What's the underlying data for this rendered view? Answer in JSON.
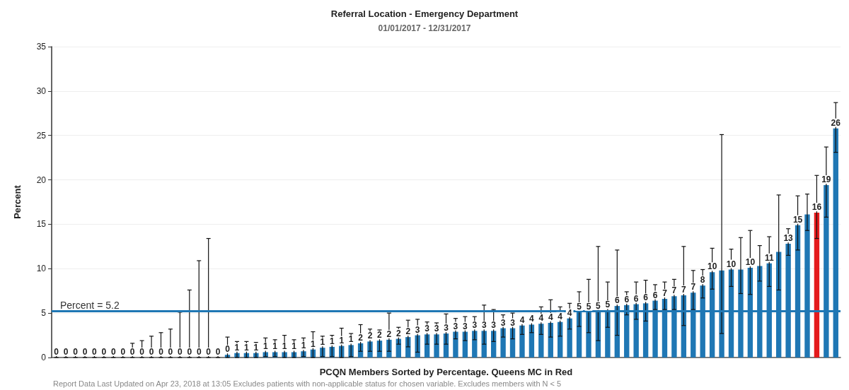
{
  "chart_data": {
    "type": "bar",
    "title": "Referral Location - Emergency Department",
    "subtitle": "01/01/2017 - 12/31/2017",
    "xlabel": "PCQN Members Sorted by Percentage. Queens MC in Red",
    "ylabel": "Percent",
    "annotations": [
      "Report Data Last Updated on Apr 23, 2018 at 13:05 Excludes patients with non-applicable status for chosen variable. Excludes members with N < 5"
    ],
    "categories": [
      null,
      null,
      null,
      null,
      null,
      null,
      null,
      null,
      null,
      null,
      null,
      null,
      null,
      null,
      null,
      null,
      null,
      null,
      null,
      null,
      null,
      null,
      null,
      null,
      null,
      null,
      null,
      null,
      null,
      null,
      null,
      null,
      null,
      null,
      null,
      null,
      null,
      null,
      null,
      null,
      null,
      null,
      null,
      null,
      null,
      null,
      null,
      null,
      null,
      null,
      null,
      null,
      null,
      null,
      null,
      null,
      null,
      null,
      null,
      null,
      null,
      null,
      null,
      null,
      null,
      null,
      null,
      null,
      null,
      null,
      null,
      null,
      null,
      null,
      null,
      null,
      null,
      null,
      null,
      null,
      null,
      null,
      null
    ],
    "values": [
      0,
      0,
      0,
      0,
      0,
      0,
      0,
      0,
      0,
      0,
      0,
      0,
      0,
      0,
      0,
      0,
      0,
      0,
      0.3,
      0.5,
      0.5,
      0.5,
      0.6,
      0.6,
      0.6,
      0.6,
      0.7,
      0.9,
      1.1,
      1.2,
      1.3,
      1.4,
      1.6,
      1.8,
      1.9,
      2.0,
      2.1,
      2.3,
      2.5,
      2.6,
      2.6,
      2.7,
      2.9,
      2.9,
      3.0,
      3.0,
      3.0,
      3.3,
      3.3,
      3.6,
      3.7,
      3.8,
      3.9,
      4.0,
      4.4,
      5.1,
      5.1,
      5.2,
      5.3,
      5.8,
      5.9,
      6.0,
      6.1,
      6.4,
      6.6,
      6.9,
      7.0,
      7.3,
      8.1,
      9.6,
      9.8,
      9.9,
      9.9,
      10.1,
      10.3,
      10.6,
      11.9,
      12.8,
      14.9,
      16.1,
      16.3,
      19.4,
      25.8
    ],
    "value_labels": [
      "0",
      "0",
      "0",
      "0",
      "0",
      "0",
      "0",
      "0",
      "0",
      "0",
      "0",
      "0",
      "0",
      "0",
      "0",
      "0",
      "0",
      "0",
      "0",
      "1",
      "1",
      "1",
      "1",
      "1",
      "1",
      "1",
      "1",
      "1",
      "1",
      "1",
      "1",
      "1",
      "2",
      "2",
      "2",
      "2",
      "2",
      "2",
      "3",
      "3",
      "3",
      "3",
      "3",
      "3",
      "3",
      "3",
      "3",
      "3",
      "3",
      "4",
      "4",
      "4",
      "4",
      "4",
      "4",
      "5",
      "5",
      "5",
      "5",
      "6",
      "6",
      "6",
      "6",
      "6",
      "7",
      "7",
      "7",
      "7",
      "8",
      "10",
      null,
      "10",
      null,
      "10",
      null,
      "11",
      null,
      "13",
      "15",
      null,
      "16",
      "19",
      "26"
    ],
    "errors": [
      [
        0,
        0.9
      ],
      [
        0,
        0.9
      ],
      [
        0,
        0.9
      ],
      [
        0,
        0.9
      ],
      [
        0,
        0.9
      ],
      [
        0,
        0.9
      ],
      [
        0,
        0.9
      ],
      [
        0,
        0.9
      ],
      [
        0,
        1.6
      ],
      [
        0,
        1.9
      ],
      [
        0,
        2.4
      ],
      [
        0,
        2.8
      ],
      [
        0,
        3.2
      ],
      [
        0,
        5.1
      ],
      [
        0,
        7.6
      ],
      [
        0,
        10.9
      ],
      [
        0,
        13.4
      ],
      [
        0,
        0.5
      ],
      [
        0,
        2.3
      ],
      [
        0,
        1.8
      ],
      [
        0,
        1.8
      ],
      [
        0,
        1.7
      ],
      [
        0.1,
        2.2
      ],
      [
        0.1,
        2.0
      ],
      [
        0,
        2.5
      ],
      [
        0,
        2.0
      ],
      [
        0.1,
        2.2
      ],
      [
        0,
        2.9
      ],
      [
        0.1,
        2.4
      ],
      [
        0.1,
        2.5
      ],
      [
        0,
        3.3
      ],
      [
        0.1,
        2.7
      ],
      [
        0.7,
        3.7
      ],
      [
        0.7,
        3.2
      ],
      [
        0.7,
        3.1
      ],
      [
        0.7,
        5.0
      ],
      [
        1.5,
        3.4
      ],
      [
        1.2,
        4.2
      ],
      [
        0.6,
        4.3
      ],
      [
        1.5,
        4.0
      ],
      [
        1.5,
        3.9
      ],
      [
        1.5,
        4.9
      ],
      [
        2.1,
        4.4
      ],
      [
        1.9,
        4.6
      ],
      [
        2.0,
        4.6
      ],
      [
        1.5,
        5.9
      ],
      [
        1.8,
        5.4
      ],
      [
        2.3,
        4.8
      ],
      [
        2.1,
        5.0
      ],
      [
        2.6,
        4.6
      ],
      [
        2.8,
        4.5
      ],
      [
        2.6,
        5.7
      ],
      [
        2.3,
        6.5
      ],
      [
        2.4,
        5.7
      ],
      [
        3.2,
        6.1
      ],
      [
        3.5,
        7.4
      ],
      [
        2.8,
        8.8
      ],
      [
        1.9,
        12.5
      ],
      [
        3.4,
        8.5
      ],
      [
        2.5,
        12.1
      ],
      [
        4.8,
        7.4
      ],
      [
        4.3,
        8.5
      ],
      [
        4.1,
        8.7
      ],
      [
        5.4,
        8.2
      ],
      [
        5.4,
        8.5
      ],
      [
        5.4,
        8.8
      ],
      [
        3.6,
        12.5
      ],
      [
        5.4,
        9.8
      ],
      [
        6.7,
        9.9
      ],
      [
        7.7,
        12.3
      ],
      [
        2.7,
        25.1
      ],
      [
        8.0,
        12.2
      ],
      [
        7.2,
        13.5
      ],
      [
        7.1,
        14.3
      ],
      [
        8.6,
        12.6
      ],
      [
        8.0,
        13.6
      ],
      [
        7.6,
        18.3
      ],
      [
        11.5,
        14.5
      ],
      [
        12.1,
        18.2
      ],
      [
        14.3,
        18.4
      ],
      [
        13.4,
        20.5
      ],
      [
        15.8,
        23.7
      ],
      [
        23.1,
        28.7
      ]
    ],
    "colors": [
      "#1f77b4",
      "#1f77b4",
      "#1f77b4",
      "#1f77b4",
      "#1f77b4",
      "#1f77b4",
      "#1f77b4",
      "#1f77b4",
      "#1f77b4",
      "#1f77b4",
      "#1f77b4",
      "#1f77b4",
      "#1f77b4",
      "#1f77b4",
      "#1f77b4",
      "#1f77b4",
      "#1f77b4",
      "#1f77b4",
      "#1f77b4",
      "#1f77b4",
      "#1f77b4",
      "#1f77b4",
      "#1f77b4",
      "#1f77b4",
      "#1f77b4",
      "#1f77b4",
      "#1f77b4",
      "#1f77b4",
      "#1f77b4",
      "#1f77b4",
      "#1f77b4",
      "#1f77b4",
      "#1f77b4",
      "#1f77b4",
      "#1f77b4",
      "#1f77b4",
      "#1f77b4",
      "#1f77b4",
      "#1f77b4",
      "#1f77b4",
      "#1f77b4",
      "#1f77b4",
      "#1f77b4",
      "#1f77b4",
      "#1f77b4",
      "#1f77b4",
      "#1f77b4",
      "#1f77b4",
      "#1f77b4",
      "#1f77b4",
      "#1f77b4",
      "#1f77b4",
      "#1f77b4",
      "#1f77b4",
      "#1f77b4",
      "#1f77b4",
      "#1f77b4",
      "#1f77b4",
      "#1f77b4",
      "#1f77b4",
      "#1f77b4",
      "#1f77b4",
      "#1f77b4",
      "#1f77b4",
      "#1f77b4",
      "#1f77b4",
      "#1f77b4",
      "#1f77b4",
      "#1f77b4",
      "#1f77b4",
      "#1f77b4",
      "#1f77b4",
      "#1f77b4",
      "#1f77b4",
      "#1f77b4",
      "#1f77b4",
      "#1f77b4",
      "#1f77b4",
      "#1f77b4",
      "#1f77b4",
      "#e41a1c",
      "#1f77b4",
      "#1f77b4"
    ],
    "ylim": [
      0,
      35
    ],
    "yticks": [
      0,
      5,
      10,
      15,
      20,
      25,
      30,
      35
    ],
    "grid": "y",
    "tick_labels": "y",
    "ref_lines": [
      {
        "axis": "y",
        "value": 5.2,
        "label": "Percent = 5.2",
        "color": "#1f77b4"
      }
    ]
  }
}
